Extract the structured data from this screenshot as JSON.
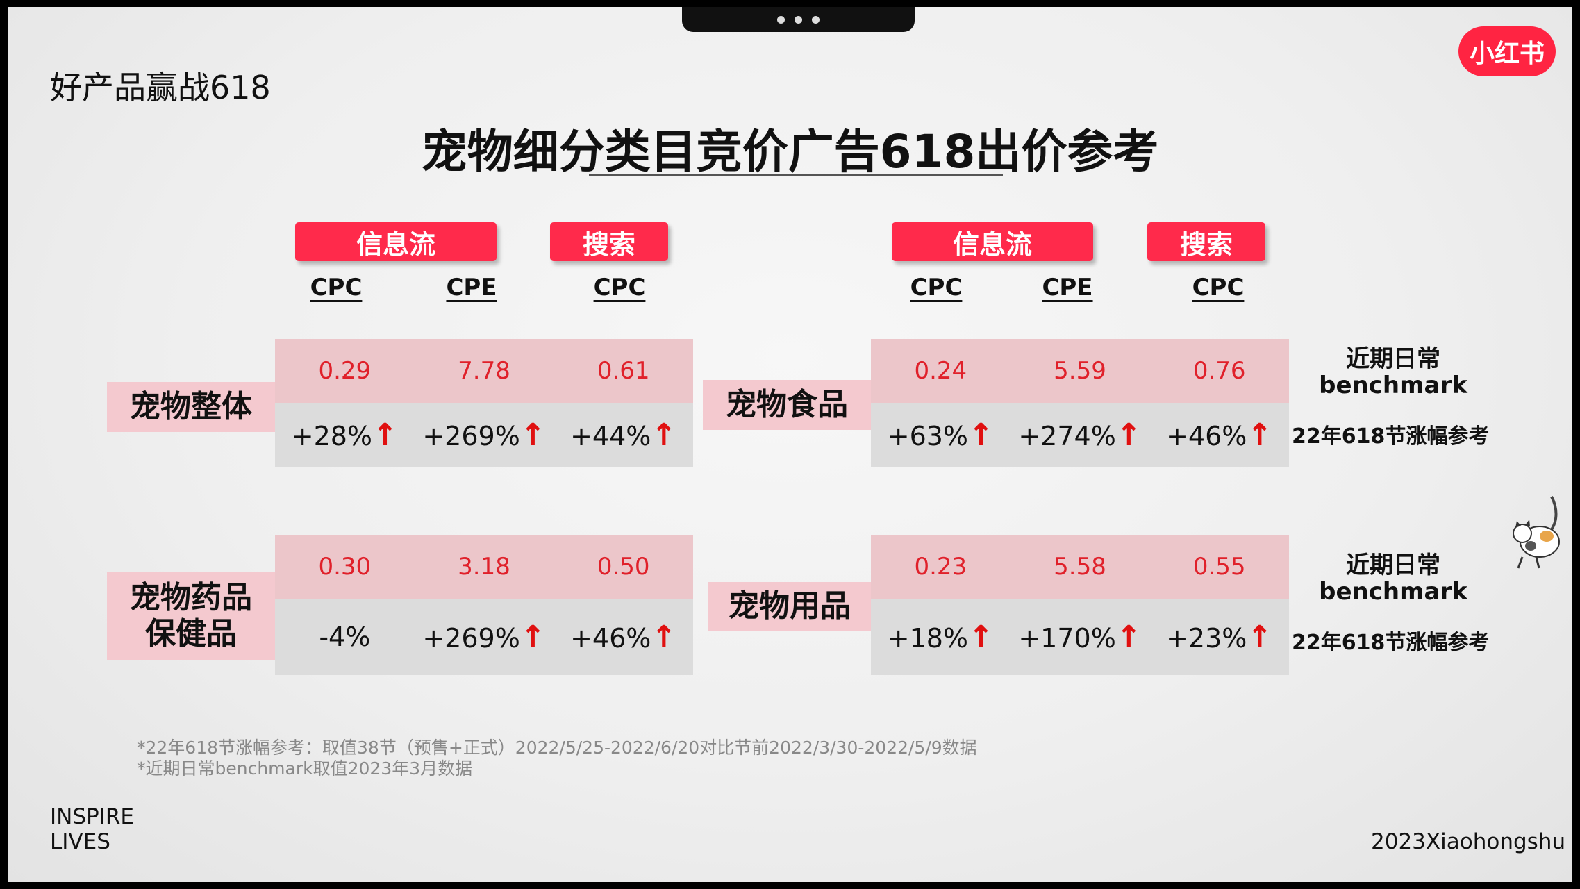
{
  "header": {
    "deck_title": "好产品赢战618",
    "logo_text": "小红书",
    "main_title": "宠物细分类目竞价广告618出价参考"
  },
  "column_groups": {
    "left": {
      "tag_feed": "信息流",
      "tag_search": "搜索",
      "col1": "CPC",
      "col2": "CPE",
      "col3": "CPC"
    },
    "right": {
      "tag_feed": "信息流",
      "tag_search": "搜索",
      "col1": "CPC",
      "col2": "CPE",
      "col3": "CPC"
    }
  },
  "tables": {
    "pet_overall": {
      "category": "宠物整体",
      "values": [
        "0.29",
        "7.78",
        "0.61"
      ],
      "changes": [
        "+28%",
        "+269%",
        "+44%"
      ]
    },
    "pet_food": {
      "category": "宠物食品",
      "values": [
        "0.24",
        "5.59",
        "0.76"
      ],
      "changes": [
        "+63%",
        "+274%",
        "+46%"
      ]
    },
    "pet_medicine": {
      "category_line1": "宠物药品",
      "category_line2": "保健品",
      "values": [
        "0.30",
        "3.18",
        "0.50"
      ],
      "changes": [
        "-4%",
        "+269%",
        "+46%"
      ]
    },
    "pet_supplies": {
      "category": "宠物用品",
      "values": [
        "0.23",
        "5.58",
        "0.55"
      ],
      "changes": [
        "+18%",
        "+170%",
        "+23%"
      ]
    }
  },
  "up_arrow": "↑",
  "side_labels": {
    "benchmark_line1": "近期日常",
    "benchmark_line2": "benchmark",
    "reference": "22年618节涨幅参考"
  },
  "footnotes": {
    "line1": "*22年618节涨幅参考：取值38节（预售+正式）2022/5/25-2022/6/20对比节前2022/3/30-2022/5/9数据",
    "line2": "*近期日常benchmark取值2023年3月数据"
  },
  "footer": {
    "left_line1": "INSPIRE",
    "left_line2": "LIVES",
    "right": "2023Xiaohongshu"
  },
  "colors": {
    "accent_red": "#ff2a4b",
    "value_red": "#e0202a",
    "pink_bg": "#f4c9cf",
    "grey_bg": "#dcdcdc"
  }
}
